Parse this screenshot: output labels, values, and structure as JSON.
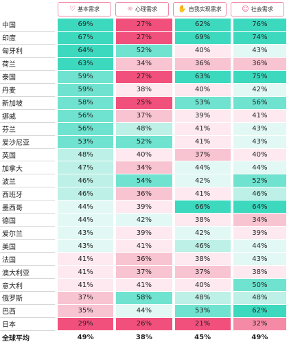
{
  "headers": [
    {
      "label": "基本需求",
      "icon": "hand-heart-icon"
    },
    {
      "label": "心理需求",
      "icon": "sun-icon"
    },
    {
      "label": "自我实现需求",
      "icon": "hand-icon"
    },
    {
      "label": "社会需求",
      "icon": "people-icon"
    }
  ],
  "rows": [
    {
      "country": "中国",
      "values": [
        "69%",
        "27%",
        "62%",
        "76%"
      ]
    },
    {
      "country": "印度",
      "values": [
        "67%",
        "27%",
        "69%",
        "74%"
      ]
    },
    {
      "country": "匈牙利",
      "values": [
        "64%",
        "52%",
        "40%",
        "43%"
      ]
    },
    {
      "country": "荷兰",
      "values": [
        "63%",
        "34%",
        "36%",
        "36%"
      ]
    },
    {
      "country": "泰国",
      "values": [
        "59%",
        "27%",
        "63%",
        "75%"
      ]
    },
    {
      "country": "丹麦",
      "values": [
        "59%",
        "38%",
        "40%",
        "42%"
      ]
    },
    {
      "country": "新加坡",
      "values": [
        "58%",
        "25%",
        "53%",
        "56%"
      ]
    },
    {
      "country": "挪威",
      "values": [
        "56%",
        "37%",
        "39%",
        "41%"
      ]
    },
    {
      "country": "芬兰",
      "values": [
        "56%",
        "48%",
        "41%",
        "43%"
      ]
    },
    {
      "country": "爱沙尼亚",
      "values": [
        "53%",
        "52%",
        "41%",
        "43%"
      ]
    },
    {
      "country": "英国",
      "values": [
        "48%",
        "40%",
        "37%",
        "40%"
      ]
    },
    {
      "country": "加拿大",
      "values": [
        "47%",
        "34%",
        "44%",
        "44%"
      ]
    },
    {
      "country": "波兰",
      "values": [
        "46%",
        "54%",
        "42%",
        "52%"
      ]
    },
    {
      "country": "西班牙",
      "values": [
        "46%",
        "36%",
        "41%",
        "46%"
      ]
    },
    {
      "country": "墨西哥",
      "values": [
        "44%",
        "39%",
        "66%",
        "64%"
      ]
    },
    {
      "country": "德国",
      "values": [
        "44%",
        "42%",
        "38%",
        "34%"
      ]
    },
    {
      "country": "爱尔兰",
      "values": [
        "43%",
        "39%",
        "42%",
        "39%"
      ]
    },
    {
      "country": "美国",
      "values": [
        "43%",
        "41%",
        "46%",
        "44%"
      ]
    },
    {
      "country": "法国",
      "values": [
        "41%",
        "36%",
        "38%",
        "43%"
      ]
    },
    {
      "country": "澳大利亚",
      "values": [
        "41%",
        "37%",
        "37%",
        "38%"
      ]
    },
    {
      "country": "意大利",
      "values": [
        "41%",
        "41%",
        "40%",
        "50%"
      ]
    },
    {
      "country": "俄罗斯",
      "values": [
        "37%",
        "58%",
        "48%",
        "48%"
      ]
    },
    {
      "country": "巴西",
      "values": [
        "35%",
        "44%",
        "53%",
        "62%"
      ]
    },
    {
      "country": "日本",
      "values": [
        "29%",
        "26%",
        "21%",
        "32%"
      ]
    }
  ],
  "average": {
    "label": "全球平均",
    "values": [
      "49%",
      "38%",
      "45%",
      "49%"
    ]
  },
  "colors": {
    "teal_dark": "#3dd9bf",
    "teal_mid": "#6fe3cf",
    "teal_light": "#bdf0e6",
    "teal_pale": "#e2f8f4",
    "pink_pale": "#fde9ef",
    "pink_light": "#f8c4d2",
    "pink_mid": "#f58aa6",
    "pink_dark": "#f2507c",
    "accent": "#e8507a"
  }
}
